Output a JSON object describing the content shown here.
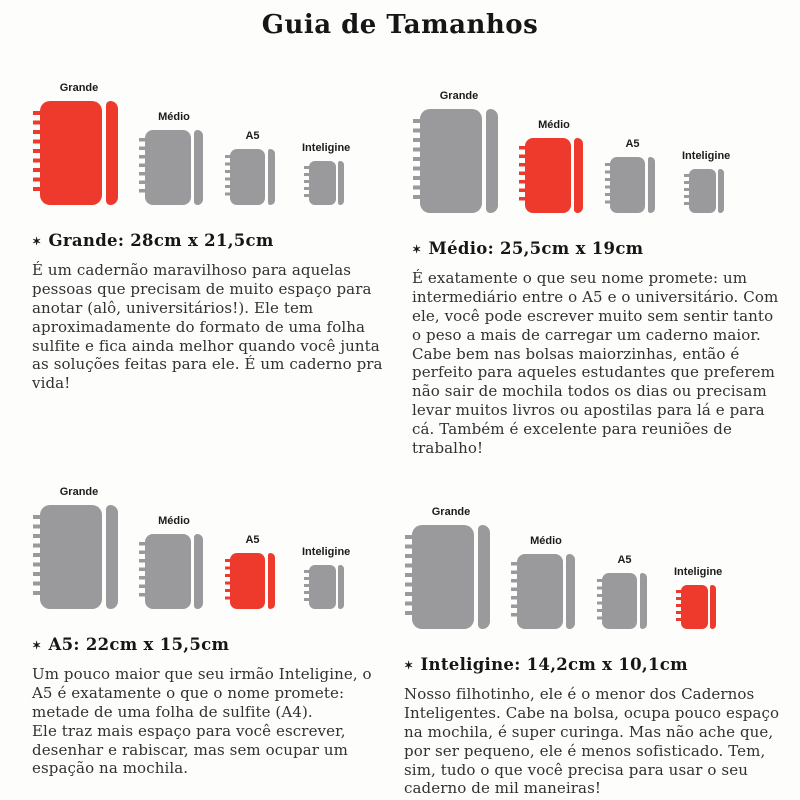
{
  "title": "Guia de Tamanhos",
  "ui": {
    "bullet": "✶"
  },
  "colors": {
    "highlight": "#ee3a2c",
    "gray": "#9a999b"
  },
  "sections": [
    {
      "id": "grande",
      "heading": "Grande: 28cm x 21,5cm",
      "body": "É um cadernão maravilhoso para aquelas pessoas que precisam de muito espaço para anotar (alô, universitários!). Ele tem aproximadamente do formato de uma folha sulfite e fica ainda melhor quando você junta as soluções feitas para ele. É um caderno pra vida!",
      "notebooks": [
        {
          "label": "Grande",
          "size": "grande",
          "highlighted": true
        },
        {
          "label": "Médio",
          "size": "medio",
          "highlighted": false
        },
        {
          "label": "A5",
          "size": "a5",
          "highlighted": false
        },
        {
          "label": "Inteligine",
          "size": "inteligine",
          "highlighted": false
        }
      ]
    },
    {
      "id": "medio",
      "heading": "Médio: 25,5cm x 19cm",
      "body": "É exatamente o que seu nome promete: um intermediário entre o A5 e o universitário. Com ele, você pode escrever muito sem sentir tanto o peso a mais de carregar um caderno maior. Cabe bem nas bolsas maiorzinhas, então é perfeito para aqueles estudantes que preferem não sair de mochila todos os dias ou precisam levar muitos livros ou apostilas para lá e para cá. Também é excelente para reuniões de trabalho!",
      "notebooks": [
        {
          "label": "Grande",
          "size": "grande",
          "highlighted": false
        },
        {
          "label": "Médio",
          "size": "medio",
          "highlighted": true
        },
        {
          "label": "A5",
          "size": "a5",
          "highlighted": false
        },
        {
          "label": "Inteligine",
          "size": "inteligine",
          "highlighted": false
        }
      ]
    },
    {
      "id": "a5",
      "heading": "A5: 22cm x 15,5cm",
      "body": "Um pouco maior que seu irmão Inteligine, o A5 é exatamente o que o nome promete: metade de uma folha de sulfite (A4).\nEle traz mais espaço para você escrever, desenhar e rabiscar, mas sem ocupar um espação na mochila.",
      "notebooks": [
        {
          "label": "Grande",
          "size": "grande",
          "highlighted": false
        },
        {
          "label": "Médio",
          "size": "medio",
          "highlighted": false
        },
        {
          "label": "A5",
          "size": "a5",
          "highlighted": true
        },
        {
          "label": "Inteligine",
          "size": "inteligine",
          "highlighted": false
        }
      ]
    },
    {
      "id": "inteligine",
      "heading": "Inteligine: 14,2cm x 10,1cm",
      "body": "Nosso filhotinho, ele é o menor dos Cadernos Inteligentes. Cabe na bolsa, ocupa pouco espaço na mochila, é super curinga. Mas não ache que, por ser pequeno, ele é menos sofisticado. Tem, sim, tudo o que você precisa para usar o seu caderno de mil maneiras!",
      "notebooks": [
        {
          "label": "Grande",
          "size": "grande",
          "highlighted": false
        },
        {
          "label": "Médio",
          "size": "medio",
          "highlighted": false
        },
        {
          "label": "A5",
          "size": "a5",
          "highlighted": false
        },
        {
          "label": "Inteligine",
          "size": "inteligine",
          "highlighted": true
        }
      ]
    }
  ]
}
